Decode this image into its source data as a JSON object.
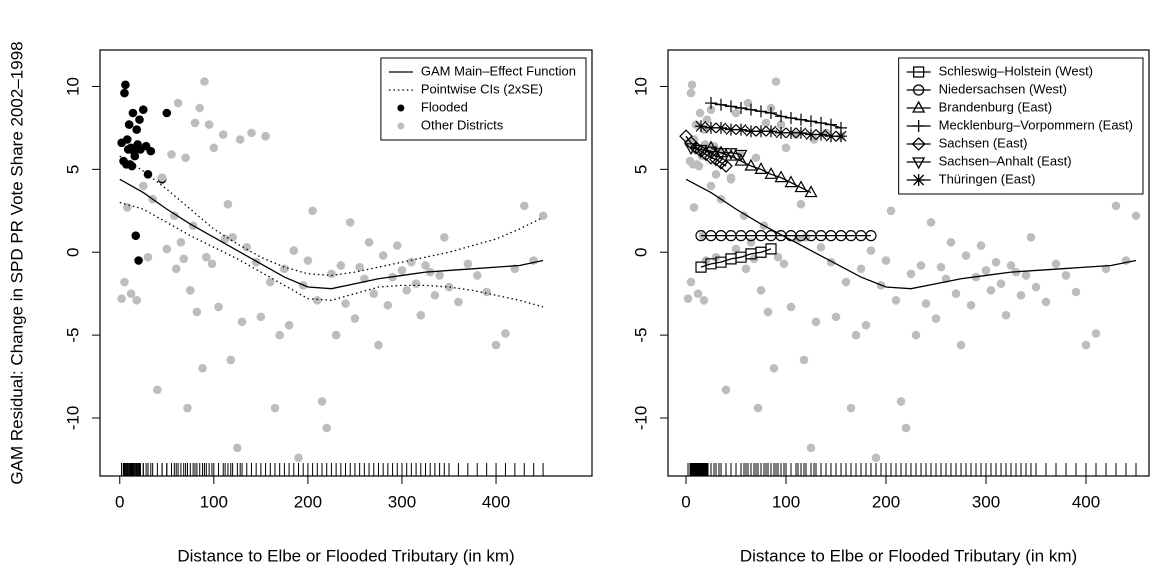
{
  "chart_data": [
    {
      "type": "scatter",
      "xlabel": "Distance to Elbe or Flooded Tributary (in km)",
      "ylabel": "GAM Residual: Change in SPD PR Vote Share 2002–1998",
      "xlim": [
        -21,
        502
      ],
      "ylim": [
        -13.5,
        12.2
      ],
      "xticks": [
        0,
        100,
        200,
        300,
        400
      ],
      "yticks": [
        -10,
        -5,
        0,
        5,
        10
      ],
      "legend": "topright",
      "rug": true,
      "series": [
        {
          "name": "GAM Main–Effect Function",
          "style": "line",
          "color": "#000000",
          "x": [
            0,
            25,
            50,
            75,
            100,
            125,
            150,
            175,
            200,
            225,
            250,
            275,
            300,
            325,
            350,
            375,
            400,
            425,
            450
          ],
          "values": [
            4.4,
            3.6,
            2.6,
            1.7,
            0.9,
            0.1,
            -0.7,
            -1.5,
            -2.1,
            -2.2,
            -1.9,
            -1.6,
            -1.4,
            -1.2,
            -1.1,
            -1.0,
            -0.9,
            -0.8,
            -0.5
          ]
        },
        {
          "name": "Pointwise CIs (2xSE)",
          "style": "band",
          "color": "#000000",
          "x": [
            0,
            25,
            50,
            75,
            100,
            125,
            150,
            175,
            200,
            225,
            250,
            275,
            300,
            325,
            350,
            375,
            400,
            425,
            450
          ],
          "upper": [
            5.8,
            4.9,
            3.8,
            2.6,
            1.4,
            0.5,
            -0.3,
            -0.9,
            -1.3,
            -1.4,
            -1.2,
            -0.9,
            -0.6,
            -0.3,
            0.0,
            0.4,
            0.8,
            1.4,
            2.1
          ],
          "lower": [
            3.0,
            2.6,
            1.8,
            1.0,
            0.3,
            -0.4,
            -1.2,
            -2.0,
            -2.8,
            -2.9,
            -2.5,
            -2.1,
            -2.0,
            -2.0,
            -2.1,
            -2.3,
            -2.6,
            -2.9,
            -3.3
          ]
        },
        {
          "name": "Flooded",
          "style": "points",
          "color": "#000000",
          "x": [
            2,
            4,
            5,
            6,
            7,
            8,
            9,
            10,
            11,
            12,
            13,
            14,
            15,
            16,
            17,
            18,
            19,
            20,
            21,
            22,
            25,
            28,
            30,
            33,
            45,
            50
          ],
          "values": [
            6.6,
            5.5,
            9.6,
            10.1,
            5.3,
            6.8,
            6.2,
            7.7,
            5.3,
            6.3,
            5.2,
            8.4,
            6.1,
            5.8,
            1.0,
            7.4,
            6.5,
            -0.5,
            8.0,
            6.2,
            8.6,
            6.4,
            4.7,
            6.1,
            4.4,
            8.4
          ]
        },
        {
          "name": "Other Districts",
          "style": "points",
          "color": "#bdbdbd",
          "x": [
            2,
            5,
            8,
            12,
            18,
            25,
            30,
            35,
            40,
            45,
            50,
            55,
            58,
            60,
            62,
            65,
            68,
            70,
            72,
            75,
            78,
            80,
            82,
            85,
            88,
            90,
            92,
            95,
            98,
            100,
            105,
            110,
            112,
            115,
            118,
            120,
            125,
            128,
            130,
            135,
            140,
            145,
            150,
            155,
            160,
            165,
            170,
            175,
            180,
            185,
            190,
            195,
            200,
            205,
            210,
            215,
            220,
            225,
            230,
            235,
            240,
            245,
            250,
            255,
            260,
            265,
            270,
            275,
            280,
            285,
            290,
            295,
            300,
            305,
            310,
            315,
            320,
            325,
            330,
            335,
            340,
            345,
            350,
            360,
            370,
            380,
            390,
            400,
            410,
            420,
            430,
            440,
            450
          ],
          "values": [
            -2.8,
            -1.8,
            2.7,
            -2.5,
            -2.9,
            4.0,
            -0.3,
            3.2,
            -8.3,
            4.5,
            0.2,
            5.9,
            2.2,
            -1.0,
            9.0,
            0.6,
            -0.4,
            5.7,
            -9.4,
            -2.3,
            1.6,
            7.8,
            -3.6,
            8.7,
            -7.0,
            10.3,
            -0.3,
            7.7,
            -0.7,
            6.3,
            -3.3,
            7.1,
            0.8,
            2.9,
            -6.5,
            0.9,
            -11.8,
            6.8,
            -4.2,
            0.3,
            7.2,
            -0.6,
            -3.9,
            7.0,
            -1.8,
            -9.4,
            -5.0,
            -1.0,
            -4.4,
            0.1,
            -12.4,
            -2.0,
            -0.5,
            2.5,
            -2.9,
            -9.0,
            -10.6,
            -1.3,
            -5.0,
            -0.8,
            -3.1,
            1.8,
            -4.0,
            -0.9,
            -1.6,
            0.6,
            -2.5,
            -5.6,
            -0.2,
            -3.2,
            -1.5,
            0.4,
            -1.1,
            -2.3,
            -0.6,
            -1.9,
            -3.8,
            -0.8,
            -1.2,
            -2.6,
            -1.4,
            0.9,
            -2.1,
            -3.0,
            -0.7,
            -1.4,
            -2.4,
            -5.6,
            -4.9,
            -1.0,
            2.8,
            -0.5,
            2.2
          ]
        }
      ]
    },
    {
      "type": "scatter",
      "xlabel": "Distance to Elbe or Flooded Tributary (in km)",
      "xlim": [
        -18,
        463
      ],
      "ylim": [
        -13.5,
        12.2
      ],
      "xticks": [
        0,
        100,
        200,
        300,
        400
      ],
      "yticks": [
        -10,
        -5,
        0,
        5,
        10
      ],
      "legend": "topright",
      "rug": true,
      "series": [
        {
          "style": "points",
          "color": "#bdbdbd",
          "x": [
            2,
            5,
            8,
            12,
            18,
            25,
            30,
            35,
            40,
            45,
            50,
            55,
            58,
            60,
            62,
            65,
            68,
            70,
            72,
            75,
            78,
            80,
            82,
            85,
            88,
            90,
            92,
            95,
            98,
            100,
            105,
            110,
            112,
            115,
            118,
            120,
            125,
            128,
            130,
            135,
            140,
            145,
            150,
            155,
            160,
            165,
            170,
            175,
            180,
            185,
            190,
            195,
            200,
            205,
            210,
            215,
            220,
            225,
            230,
            235,
            240,
            245,
            250,
            255,
            260,
            265,
            270,
            275,
            280,
            285,
            290,
            295,
            300,
            305,
            310,
            315,
            320,
            325,
            330,
            335,
            340,
            345,
            350,
            360,
            370,
            380,
            390,
            400,
            410,
            420,
            430,
            440,
            450,
            2,
            4,
            5,
            6,
            7,
            8,
            9,
            10,
            11,
            12,
            13,
            14,
            15,
            16,
            17,
            18,
            19,
            20,
            21,
            22,
            25,
            28,
            30,
            33,
            45,
            50
          ],
          "values": [
            -2.8,
            -1.8,
            2.7,
            -2.5,
            -2.9,
            4.0,
            -0.3,
            3.2,
            -8.3,
            4.5,
            0.2,
            5.9,
            2.2,
            -1.0,
            9.0,
            0.6,
            -0.4,
            5.7,
            -9.4,
            -2.3,
            1.6,
            7.8,
            -3.6,
            8.7,
            -7.0,
            10.3,
            -0.3,
            7.7,
            -0.7,
            6.3,
            -3.3,
            7.1,
            0.8,
            2.9,
            -6.5,
            0.9,
            -11.8,
            6.8,
            -4.2,
            0.3,
            7.2,
            -0.6,
            -3.9,
            7.0,
            -1.8,
            -9.4,
            -5.0,
            -1.0,
            -4.4,
            0.1,
            -12.4,
            -2.0,
            -0.5,
            2.5,
            -2.9,
            -9.0,
            -10.6,
            -1.3,
            -5.0,
            -0.8,
            -3.1,
            1.8,
            -4.0,
            -0.9,
            -1.6,
            0.6,
            -2.5,
            -5.6,
            -0.2,
            -3.2,
            -1.5,
            0.4,
            -1.1,
            -2.3,
            -0.6,
            -1.9,
            -3.8,
            -0.8,
            -1.2,
            -2.6,
            -1.4,
            0.9,
            -2.1,
            -3.0,
            -0.7,
            -1.4,
            -2.4,
            -5.6,
            -4.9,
            -1.0,
            2.8,
            -0.5,
            2.2,
            6.6,
            5.5,
            9.6,
            10.1,
            5.3,
            6.8,
            6.2,
            7.7,
            5.3,
            6.3,
            5.2,
            8.4,
            6.1,
            5.8,
            1.0,
            7.4,
            6.5,
            -0.5,
            8.0,
            6.2,
            8.6,
            6.4,
            4.7,
            6.1,
            4.4,
            8.4
          ]
        },
        {
          "style": "line",
          "color": "#000000",
          "x": [
            0,
            25,
            50,
            75,
            100,
            125,
            150,
            175,
            200,
            225,
            250,
            275,
            300,
            325,
            350,
            375,
            400,
            425,
            450
          ],
          "values": [
            4.4,
            3.6,
            2.6,
            1.7,
            0.9,
            0.1,
            -0.7,
            -1.5,
            -2.1,
            -2.2,
            -1.9,
            -1.6,
            -1.4,
            -1.2,
            -1.1,
            -1.0,
            -0.9,
            -0.8,
            -0.5
          ]
        },
        {
          "name": "Schleswig–Holstein (West)",
          "style": "line-marker",
          "marker": "square",
          "color": "#000000",
          "x": [
            15,
            25,
            35,
            45,
            55,
            65,
            75,
            85
          ],
          "values": [
            -0.9,
            -0.7,
            -0.6,
            -0.4,
            -0.3,
            -0.1,
            0.0,
            0.2
          ]
        },
        {
          "name": "Niedersachsen (West)",
          "style": "line-marker",
          "marker": "circle",
          "color": "#000000",
          "x": [
            15,
            25,
            35,
            45,
            55,
            65,
            75,
            85,
            95,
            105,
            115,
            125,
            135,
            145,
            155,
            165,
            175,
            185
          ],
          "values": [
            1.0,
            1.0,
            1.0,
            1.0,
            1.0,
            1.0,
            1.0,
            1.0,
            1.0,
            1.0,
            1.0,
            1.0,
            1.0,
            1.0,
            1.0,
            1.0,
            1.0,
            1.0
          ]
        },
        {
          "name": "Brandenburg (East)",
          "style": "line-marker",
          "marker": "triangle",
          "color": "#000000",
          "x": [
            25,
            35,
            45,
            55,
            65,
            75,
            85,
            95,
            105,
            115,
            125
          ],
          "values": [
            6.3,
            6.0,
            5.8,
            5.5,
            5.2,
            5.0,
            4.7,
            4.5,
            4.2,
            3.9,
            3.6
          ]
        },
        {
          "name": "Mecklenburg–Vorpommern (East)",
          "style": "line-marker",
          "marker": "plus",
          "color": "#000000",
          "x": [
            25,
            35,
            45,
            55,
            65,
            75,
            85,
            95,
            105,
            115,
            125,
            135,
            145,
            155
          ],
          "values": [
            9.0,
            8.9,
            8.8,
            8.7,
            8.6,
            8.5,
            8.4,
            8.2,
            8.1,
            8.0,
            7.9,
            7.8,
            7.7,
            7.5
          ]
        },
        {
          "name": "Sachsen (East)",
          "style": "line-marker",
          "marker": "diamond",
          "color": "#000000",
          "x": [
            0,
            5,
            10,
            15,
            20,
            25,
            30,
            35,
            40
          ],
          "values": [
            7.0,
            6.6,
            6.3,
            6.1,
            5.9,
            5.7,
            5.6,
            5.4,
            5.2
          ]
        },
        {
          "name": "Sachsen–Anhalt (East)",
          "style": "line-marker",
          "marker": "triangle-down",
          "color": "#000000",
          "x": [
            5,
            15,
            25,
            35,
            45,
            55
          ],
          "values": [
            6.3,
            6.2,
            6.1,
            6.0,
            6.0,
            5.9
          ]
        },
        {
          "name": "Thüringen (East)",
          "style": "line-marker",
          "marker": "star",
          "color": "#000000",
          "x": [
            15,
            25,
            35,
            45,
            55,
            65,
            75,
            85,
            95,
            105,
            115,
            125,
            135,
            145,
            155
          ],
          "values": [
            7.6,
            7.5,
            7.5,
            7.4,
            7.4,
            7.3,
            7.3,
            7.3,
            7.2,
            7.2,
            7.2,
            7.1,
            7.1,
            7.0,
            7.0
          ]
        }
      ]
    }
  ]
}
